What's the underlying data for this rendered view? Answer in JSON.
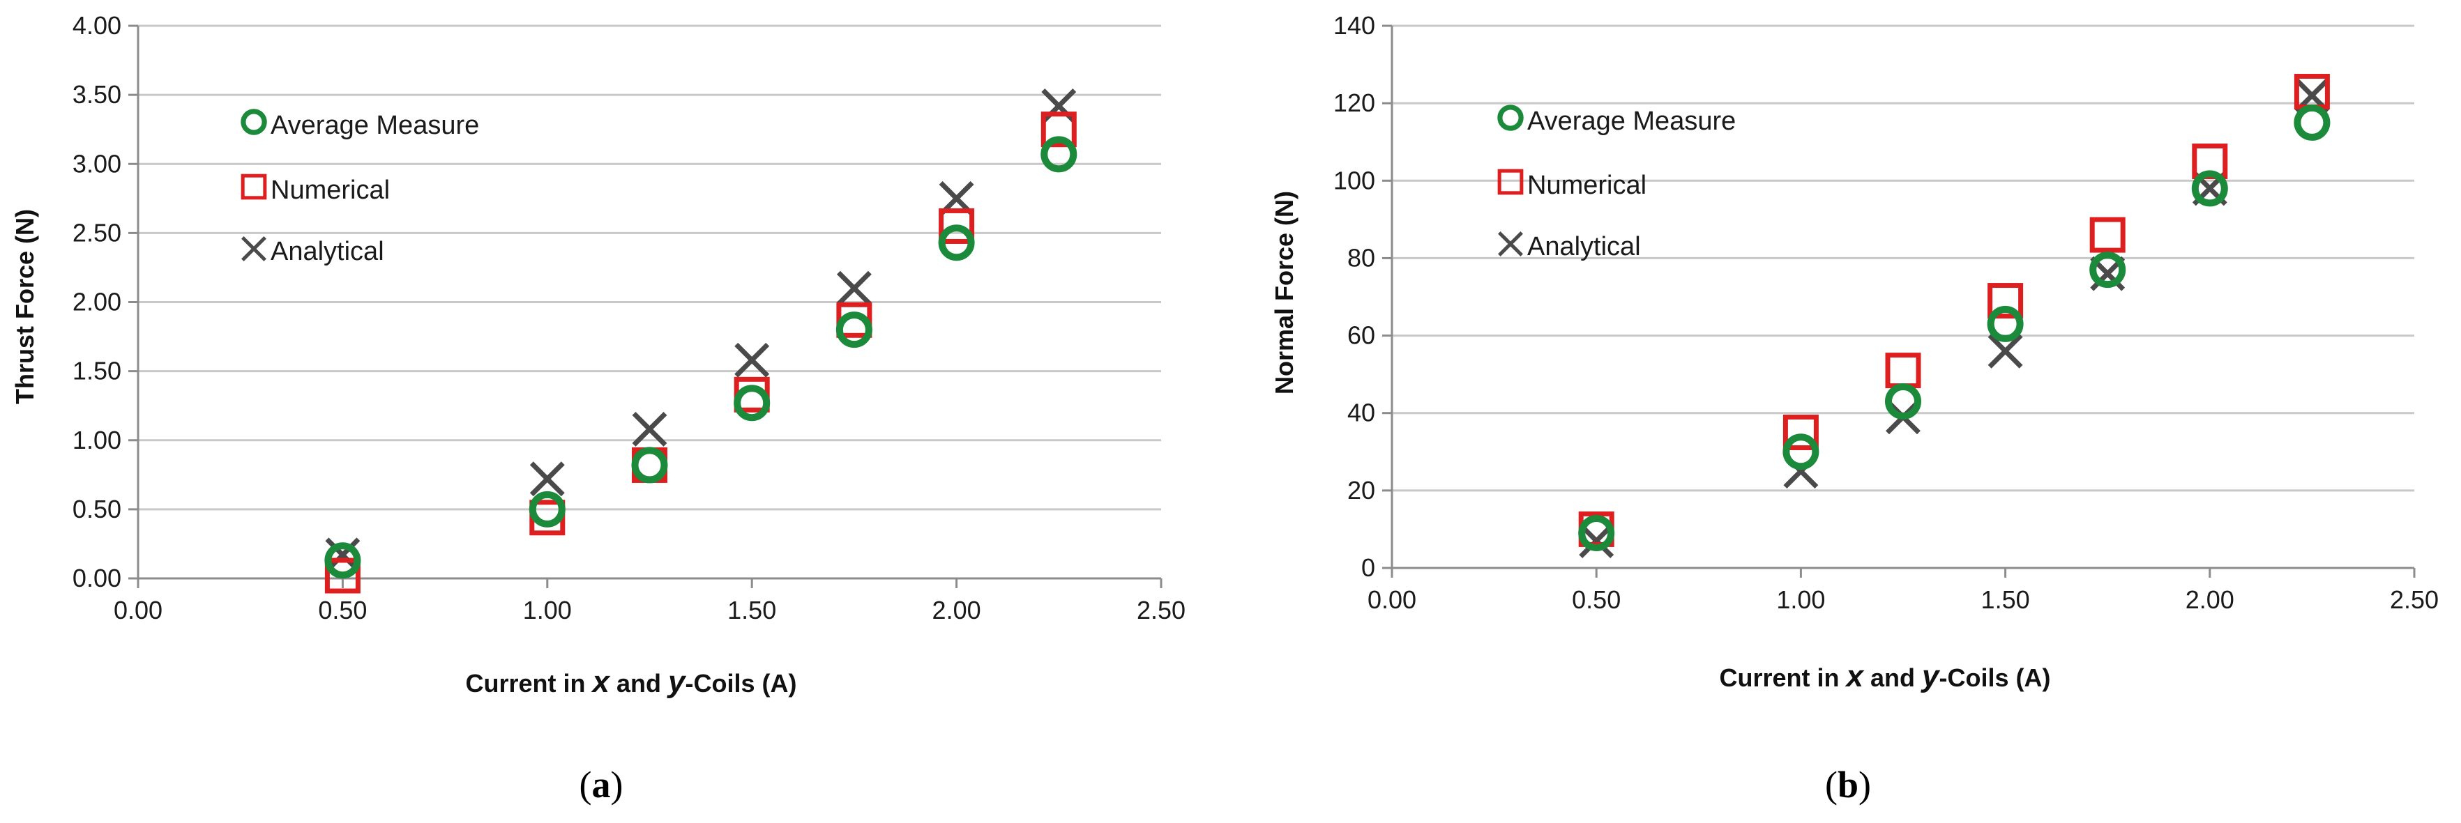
{
  "colors": {
    "measure": "#1b8a3a",
    "numerical": "#dd1f1f",
    "analytical": "#4a4a4a",
    "grid": "#c8c8c8",
    "axis": "#8c8c8c"
  },
  "chart_data": [
    {
      "type": "scatter",
      "panel": "(a)",
      "panel_letter": "a",
      "xlabel": "Current in x and y-Coils (A)",
      "xlabel_parts": {
        "pre": "Current in ",
        "x": "x",
        "mid": " and ",
        "y": "y",
        "post": "-Coils (A)"
      },
      "ylabel": "Thrust Force (N)",
      "xlim": [
        0,
        2.5
      ],
      "ylim": [
        0,
        4
      ],
      "xticks": [
        0,
        0.5,
        1,
        1.5,
        2,
        2.5
      ],
      "xtick_labels": [
        "0.00",
        "0.50",
        "1.00",
        "1.50",
        "2.00",
        "2.50"
      ],
      "yticks": [
        0,
        0.5,
        1,
        1.5,
        2,
        2.5,
        3,
        3.5,
        4
      ],
      "ytick_labels": [
        "0.00",
        "0.50",
        "1.00",
        "1.50",
        "2.00",
        "2.50",
        "3.00",
        "3.50",
        "4.00"
      ],
      "grid": "horizontal",
      "legend_position": "top-left",
      "series": [
        {
          "name": "Average Measure",
          "marker": "circle",
          "x": [
            0.5,
            1.0,
            1.25,
            1.5,
            1.75,
            2.0,
            2.25
          ],
          "y": [
            0.13,
            0.5,
            0.82,
            1.27,
            1.8,
            2.43,
            3.07
          ]
        },
        {
          "name": "Numerical",
          "marker": "square",
          "x": [
            0.5,
            1.0,
            1.25,
            1.5,
            1.75,
            2.0,
            2.25
          ],
          "y": [
            0.02,
            0.44,
            0.82,
            1.33,
            1.87,
            2.55,
            3.25
          ]
        },
        {
          "name": "Analytical",
          "marker": "x",
          "x": [
            0.5,
            1.0,
            1.25,
            1.5,
            1.75,
            2.0,
            2.25
          ],
          "y": [
            0.17,
            0.72,
            1.08,
            1.58,
            2.1,
            2.75,
            3.42
          ]
        }
      ]
    },
    {
      "type": "scatter",
      "panel": "(b)",
      "panel_letter": "b",
      "xlabel": "Current in x and y-Coils (A)",
      "xlabel_parts": {
        "pre": "Current in ",
        "x": "x",
        "mid": " and ",
        "y": "y",
        "post": "-Coils (A)"
      },
      "ylabel": "Normal Force (N)",
      "xlim": [
        0,
        2.5
      ],
      "ylim": [
        0,
        140
      ],
      "xticks": [
        0,
        0.5,
        1,
        1.5,
        2,
        2.5
      ],
      "xtick_labels": [
        "0.00",
        "0.50",
        "1.00",
        "1.50",
        "2.00",
        "2.50"
      ],
      "yticks": [
        0,
        20,
        40,
        60,
        80,
        100,
        120,
        140
      ],
      "ytick_labels": [
        "0",
        "20",
        "40",
        "60",
        "80",
        "100",
        "120",
        "140"
      ],
      "grid": "horizontal",
      "legend_position": "top-left",
      "series": [
        {
          "name": "Average Measure",
          "marker": "circle",
          "x": [
            0.5,
            1.0,
            1.25,
            1.5,
            1.75,
            2.0,
            2.25
          ],
          "y": [
            9,
            30,
            43,
            63,
            77,
            98,
            115
          ]
        },
        {
          "name": "Numerical",
          "marker": "square",
          "x": [
            0.5,
            1.0,
            1.25,
            1.5,
            1.75,
            2.0,
            2.25
          ],
          "y": [
            10,
            35,
            51,
            69,
            86,
            105,
            123
          ]
        },
        {
          "name": "Analytical",
          "marker": "x",
          "x": [
            0.5,
            1.0,
            1.25,
            1.5,
            1.75,
            2.0,
            2.25
          ],
          "y": [
            7,
            25,
            39,
            56,
            76,
            98,
            122
          ]
        }
      ]
    }
  ]
}
